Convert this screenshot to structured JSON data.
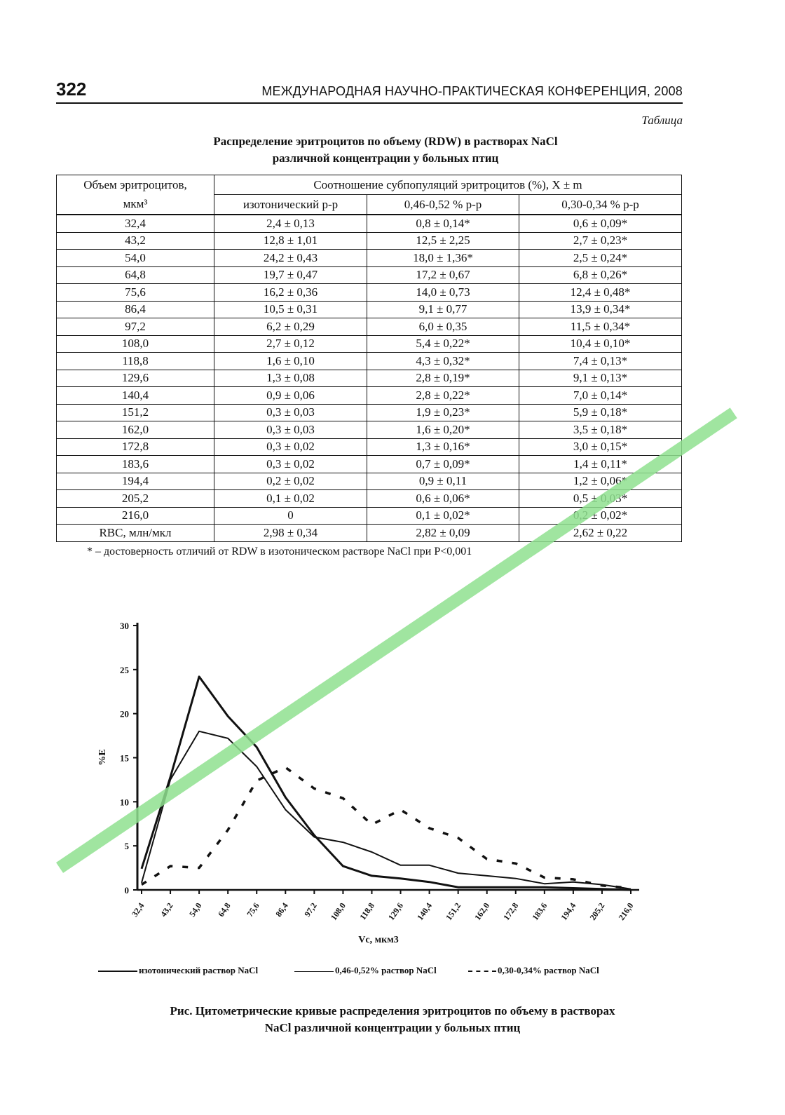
{
  "header": {
    "page_number": "322",
    "running_head": "МЕЖДУНАРОДНАЯ НАУЧНО-ПРАКТИЧЕСКАЯ КОНФЕРЕНЦИЯ, 2008"
  },
  "table": {
    "label": "Таблица",
    "title_line1": "Распределение эритроцитов по объему (RDW) в растворах NaCl",
    "title_line2": "различной концентрации у больных птиц",
    "header_col1_line1": "Объем эритроцитов,",
    "header_col1_line2": "мкм³",
    "header_group": "Соотношение субпопуляций эритроцитов (%), X ± m",
    "columns": [
      "изотонический р-р",
      "0,46-0,52 % р-р",
      "0,30-0,34 % р-р"
    ],
    "rows": [
      [
        "32,4",
        "2,4 ± 0,13",
        "0,8 ± 0,14*",
        "0,6 ± 0,09*"
      ],
      [
        "43,2",
        "12,8 ± 1,01",
        "12,5 ± 2,25",
        "2,7 ± 0,23*"
      ],
      [
        "54,0",
        "24,2 ± 0,43",
        "18,0 ± 1,36*",
        "2,5 ± 0,24*"
      ],
      [
        "64,8",
        "19,7 ± 0,47",
        "17,2 ± 0,67",
        "6,8 ± 0,26*"
      ],
      [
        "75,6",
        "16,2 ± 0,36",
        "14,0 ± 0,73",
        "12,4 ± 0,48*"
      ],
      [
        "86,4",
        "10,5 ± 0,31",
        "9,1 ± 0,77",
        "13,9 ± 0,34*"
      ],
      [
        "97,2",
        "6,2 ± 0,29",
        "6,0 ± 0,35",
        "11,5 ± 0,34*"
      ],
      [
        "108,0",
        "2,7 ± 0,12",
        "5,4 ± 0,22*",
        "10,4 ± 0,10*"
      ],
      [
        "118,8",
        "1,6 ± 0,10",
        "4,3 ± 0,32*",
        "7,4 ± 0,13*"
      ],
      [
        "129,6",
        "1,3 ± 0,08",
        "2,8 ± 0,19*",
        "9,1 ± 0,13*"
      ],
      [
        "140,4",
        "0,9 ± 0,06",
        "2,8 ± 0,22*",
        "7,0 ± 0,14*"
      ],
      [
        "151,2",
        "0,3 ± 0,03",
        "1,9 ± 0,23*",
        "5,9 ± 0,18*"
      ],
      [
        "162,0",
        "0,3 ± 0,03",
        "1,6 ± 0,20*",
        "3,5 ± 0,18*"
      ],
      [
        "172,8",
        "0,3 ± 0,02",
        "1,3 ± 0,16*",
        "3,0 ± 0,15*"
      ],
      [
        "183,6",
        "0,3 ± 0,02",
        "0,7 ± 0,09*",
        "1,4 ± 0,11*"
      ],
      [
        "194,4",
        "0,2 ± 0,02",
        "0,9 ± 0,11",
        "1,2 ± 0,06*"
      ],
      [
        "205,2",
        "0,1 ± 0,02",
        "0,6 ± 0,06*",
        "0,5 ± 0,03*"
      ],
      [
        "216,0",
        "0",
        "0,1 ± 0,02*",
        "0,2 ± 0,02*"
      ],
      [
        "RBC, млн/мкл",
        "2,98 ± 0,34",
        "2,82 ± 0,09",
        "2,62 ± 0,22"
      ]
    ],
    "footnote": "* – достоверность отличий от RDW в изотоническом растворе NaCl при P<0,001"
  },
  "chart_data": {
    "type": "line",
    "categories": [
      "32,4",
      "43,2",
      "54,0",
      "64,8",
      "75,6",
      "86,4",
      "97,2",
      "108,0",
      "118,8",
      "129,6",
      "140,4",
      "151,2",
      "162,0",
      "172,8",
      "183,6",
      "194,4",
      "205,2",
      "216,0"
    ],
    "series": [
      {
        "name": "изотонический раствор NaCl",
        "style": "solid-thick",
        "values": [
          2.4,
          12.8,
          24.2,
          19.7,
          16.2,
          10.5,
          6.2,
          2.7,
          1.6,
          1.3,
          0.9,
          0.3,
          0.3,
          0.3,
          0.3,
          0.2,
          0.1,
          0
        ]
      },
      {
        "name": "0,46-0,52% раствор NaCl",
        "style": "solid",
        "values": [
          0.8,
          12.5,
          18.0,
          17.2,
          14.0,
          9.1,
          6.0,
          5.4,
          4.3,
          2.8,
          2.8,
          1.9,
          1.6,
          1.3,
          0.7,
          0.9,
          0.6,
          0.1
        ]
      },
      {
        "name": "0,30-0,34% раствор NaCl",
        "style": "dashed",
        "values": [
          0.6,
          2.7,
          2.5,
          6.8,
          12.4,
          13.9,
          11.5,
          10.4,
          7.4,
          9.1,
          7.0,
          5.9,
          3.5,
          3.0,
          1.4,
          1.2,
          0.5,
          0.2
        ]
      }
    ],
    "ylabel": "%E",
    "xlabel": "Vc, мкм3",
    "ylim": [
      0,
      30
    ],
    "yticks": [
      "0",
      "5",
      "10",
      "15",
      "20",
      "25",
      "30"
    ],
    "grid": false,
    "legend": "bottom"
  },
  "figure": {
    "caption_line1": "Рис. Цитометрические кривые распределения эритроцитов по объему в растворах",
    "caption_line2": "NaCl различной концентрации у больных птиц"
  },
  "colors": {
    "ink": "#111111",
    "watermark": "#8fe08f"
  }
}
